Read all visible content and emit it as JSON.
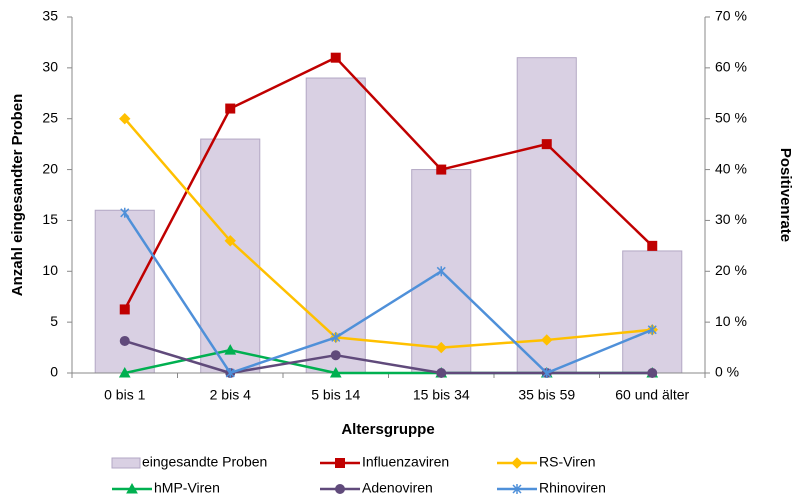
{
  "chart_data": {
    "type": "combo",
    "x_label": "Altersgruppe",
    "y_label": "Anzahl eingesandter Proben",
    "y2_label": "Positivenrate",
    "categories": [
      "0 bis 1",
      "2 bis 4",
      "5 bis 14",
      "15 bis 34",
      "35 bis 59",
      "60 und älter"
    ],
    "ylim": [
      0,
      35
    ],
    "yticks": [
      0,
      5,
      10,
      15,
      20,
      25,
      30,
      35
    ],
    "y2lim": [
      0,
      70
    ],
    "y2ticks": [
      {
        "value": 0,
        "label": "0 %"
      },
      {
        "value": 10,
        "label": "10 %"
      },
      {
        "value": 20,
        "label": "20 %"
      },
      {
        "value": 30,
        "label": "30 %"
      },
      {
        "value": 40,
        "label": "40 %"
      },
      {
        "value": 50,
        "label": "50 %"
      },
      {
        "value": 60,
        "label": "60 %"
      },
      {
        "value": 70,
        "label": "70 %"
      }
    ],
    "grid": false,
    "series": [
      {
        "name": "eingesandte Proben",
        "type": "bar",
        "color": "#d9d0e3",
        "values": [
          16,
          23,
          29,
          20,
          31,
          12
        ]
      },
      {
        "name": "Influenzaviren",
        "type": "line",
        "axis": "y2",
        "marker": "square",
        "color": "#c00000",
        "values": [
          12.5,
          52,
          62,
          40,
          45,
          25
        ]
      },
      {
        "name": "RS-Viren",
        "type": "line",
        "axis": "y2",
        "marker": "diamond",
        "color": "#ffc000",
        "values": [
          50,
          26,
          7,
          5,
          6.5,
          8.5
        ]
      },
      {
        "name": "hMP-Viren",
        "type": "line",
        "axis": "y2",
        "marker": "triangle",
        "color": "#00b050",
        "values": [
          0,
          4.5,
          0,
          0,
          0,
          0
        ]
      },
      {
        "name": "Adenoviren",
        "type": "line",
        "axis": "y2",
        "marker": "circle",
        "color": "#604a7b",
        "values": [
          6.3,
          0,
          3.5,
          0,
          0,
          0
        ]
      },
      {
        "name": "Rhinoviren",
        "type": "line",
        "axis": "y2",
        "marker": "star",
        "color": "#4f90d9",
        "values": [
          31.5,
          0,
          7,
          20,
          0,
          8.5
        ]
      }
    ]
  }
}
